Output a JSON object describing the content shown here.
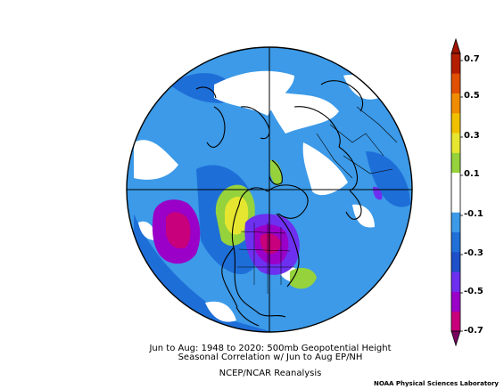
{
  "caption": {
    "line1": "Jun to Aug: 1948 to 2020: 500mb Geopotential Height",
    "line2": "Seasonal Correlation w/ Jun to Aug EP/NH",
    "line3": "NCEP/NCAR Reanalysis"
  },
  "credit": "NOAA Physical Sciences Laboratory",
  "colorbar": {
    "ticks": [
      "0.7",
      "0.5",
      "0.3",
      "0.1",
      "-0.1",
      "-0.3",
      "-0.5",
      "-0.7"
    ],
    "colors": [
      "#c8007c",
      "#9a00c8",
      "#6e30f0",
      "#1e50c8",
      "#2070d8",
      "#3c9ae8",
      "#ffffff",
      "#ffffff",
      "#96d23c",
      "#e6e630",
      "#f0c000",
      "#f08c00",
      "#e05000",
      "#b41e00"
    ]
  }
}
